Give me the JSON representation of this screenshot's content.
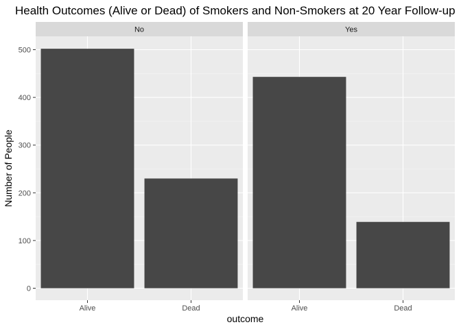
{
  "chart_data": {
    "type": "bar",
    "title": "Health Outcomes (Alive or Dead) of Smokers and Non-Smokers at 20 Year Follow-up",
    "xlabel": "outcome",
    "ylabel": "Number of People",
    "categories": [
      "Alive",
      "Dead"
    ],
    "ylim": [
      0,
      530
    ],
    "yticks": [
      0,
      100,
      200,
      300,
      400,
      500
    ],
    "grid": true,
    "facets": [
      {
        "label": "No",
        "values": [
          502,
          230
        ]
      },
      {
        "label": "Yes",
        "values": [
          443,
          139
        ]
      }
    ],
    "colors": {
      "bar": "#474747",
      "panel": "#ebebeb",
      "strip": "#d9d9d9",
      "grid_major": "#ffffff",
      "grid_minor": "#f5f5f5"
    }
  }
}
